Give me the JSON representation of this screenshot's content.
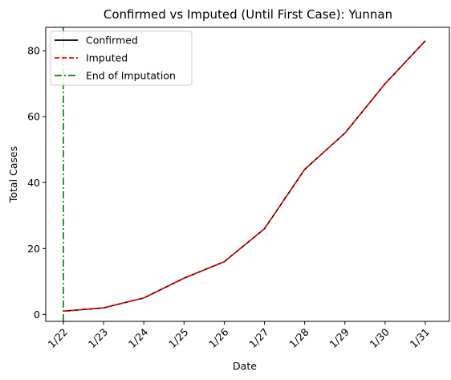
{
  "chart_data": {
    "type": "line",
    "title": "Confirmed vs Imputed (Until First Case): Yunnan",
    "xlabel": "Date",
    "ylabel": "Total Cases",
    "categories": [
      "1/22",
      "1/23",
      "1/24",
      "1/25",
      "1/26",
      "1/27",
      "1/28",
      "1/29",
      "1/30",
      "1/31"
    ],
    "yticks": [
      0,
      20,
      40,
      60,
      80
    ],
    "ylim": [
      -2.1,
      87.1
    ],
    "grid": false,
    "legend_position": "top-left",
    "series": [
      {
        "name": "Confirmed",
        "color": "#000000",
        "style": "solid",
        "values": [
          1,
          2,
          5,
          11,
          16,
          26,
          44,
          55,
          70,
          83
        ]
      },
      {
        "name": "Imputed",
        "color": "#ff0000",
        "style": "dashed",
        "values": [
          1,
          2,
          5,
          11,
          16,
          26,
          44,
          55,
          70,
          83
        ]
      }
    ],
    "vline": {
      "name": "End of Imputation",
      "color": "#008000",
      "style": "dashdot",
      "x": "1/22"
    }
  }
}
